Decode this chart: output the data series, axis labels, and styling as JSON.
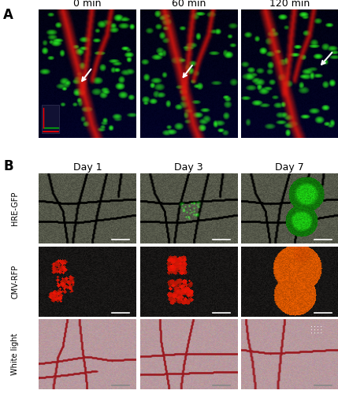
{
  "panel_A_label": "A",
  "panel_B_label": "B",
  "panel_A_titles": [
    "0 min",
    "60 min",
    "120 min"
  ],
  "panel_B_col_titles": [
    "Day 1",
    "Day 3",
    "Day 7"
  ],
  "panel_B_row_labels": [
    "HRE-GFP",
    "CMV-RFP",
    "White light"
  ],
  "bg_color": "#ffffff",
  "label_fontsize": 12,
  "title_fontsize": 9,
  "row_label_fontsize": 7,
  "figure_width": 4.29,
  "figure_height": 5.0,
  "dpi": 100
}
